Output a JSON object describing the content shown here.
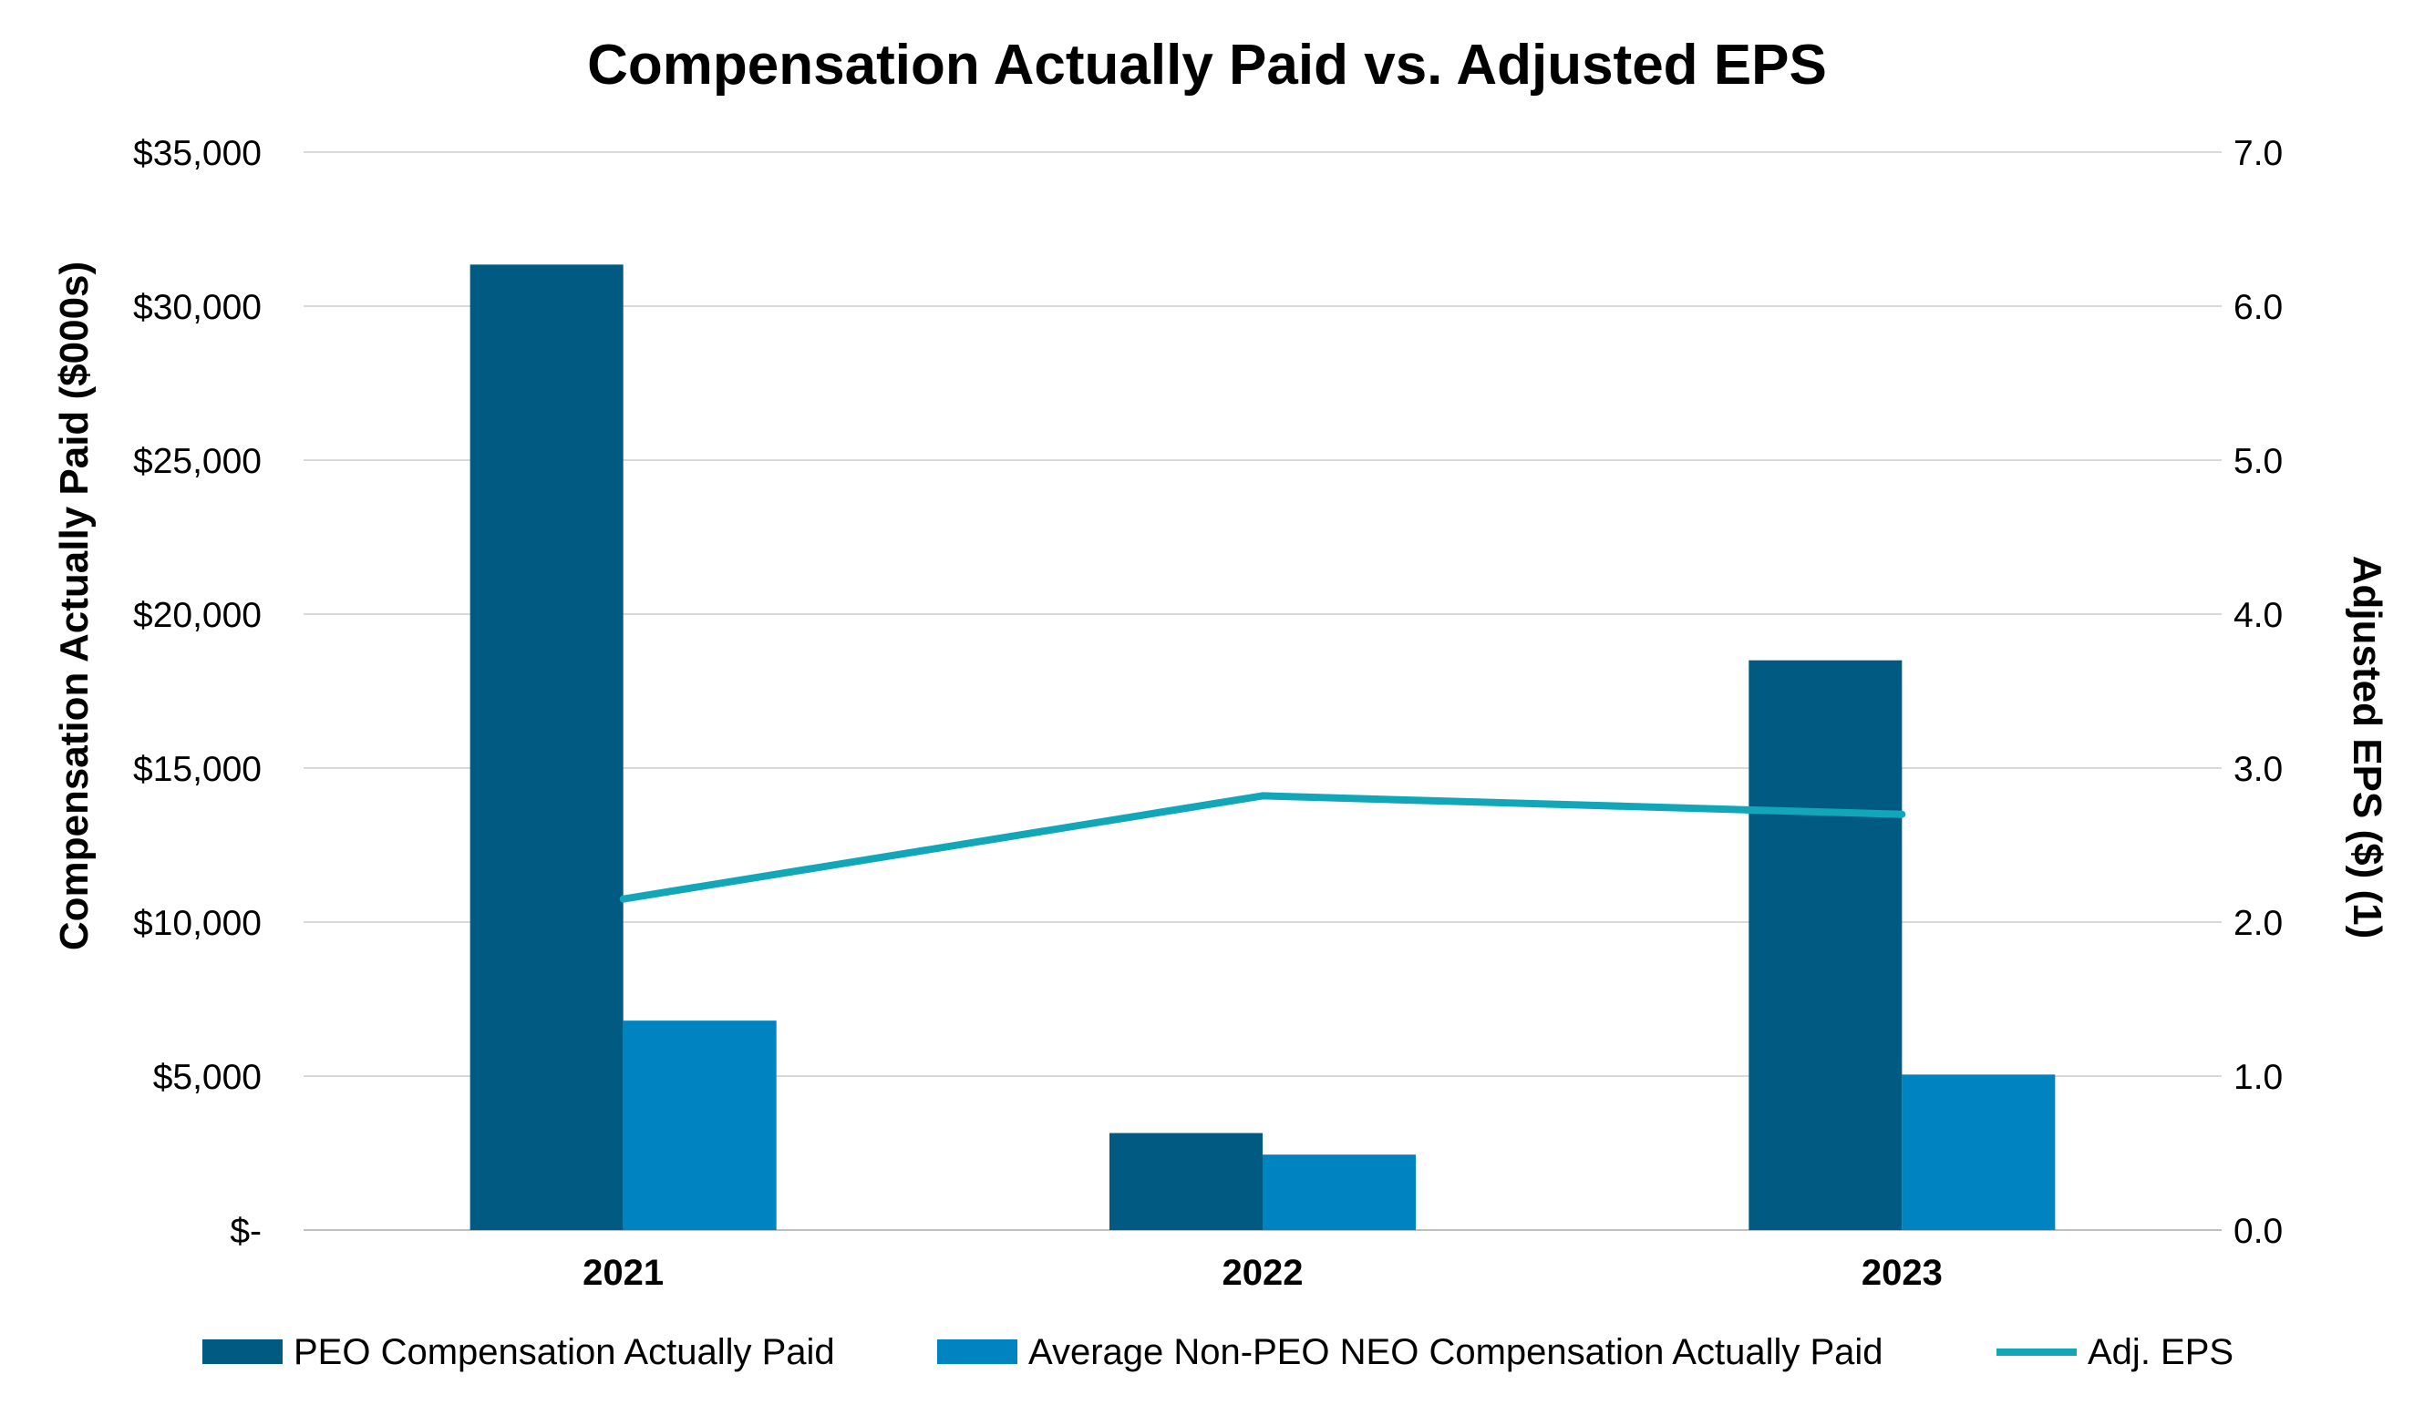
{
  "chart_data": {
    "type": "bar",
    "title": "Compensation Actually Paid vs. Adjusted EPS",
    "categories": [
      "2021",
      "2022",
      "2023"
    ],
    "ylabel": "Compensation Actually Paid ($000s)",
    "y2label": "Adjusted EPS ($) (1)",
    "ylim": [
      0,
      35000
    ],
    "y2lim": [
      0,
      7
    ],
    "yticks": [
      {
        "value": 35000,
        "label": "$35,000"
      },
      {
        "value": 30000,
        "label": "$30,000"
      },
      {
        "value": 25000,
        "label": "$25,000"
      },
      {
        "value": 20000,
        "label": "$20,000"
      },
      {
        "value": 15000,
        "label": "$15,000"
      },
      {
        "value": 10000,
        "label": "$10,000"
      },
      {
        "value": 5000,
        "label": "$5,000"
      },
      {
        "value": 0,
        "label": "$-"
      }
    ],
    "y2ticks": [
      {
        "value": 7,
        "label": "7.0"
      },
      {
        "value": 6,
        "label": "6.0"
      },
      {
        "value": 5,
        "label": "5.0"
      },
      {
        "value": 4,
        "label": "4.0"
      },
      {
        "value": 3,
        "label": "3.0"
      },
      {
        "value": 2,
        "label": "2.0"
      },
      {
        "value": 1,
        "label": "1.0"
      },
      {
        "value": 0,
        "label": "0.0"
      }
    ],
    "grid": true,
    "legend_position": "bottom",
    "series": [
      {
        "name": "PEO Compensation Actually Paid",
        "type": "bar",
        "axis": "left",
        "color": "#005A82",
        "values": [
          31350,
          3150,
          18500
        ]
      },
      {
        "name": "Average Non-PEO NEO Compensation Actually Paid",
        "type": "bar",
        "axis": "left",
        "color": "#0083C1",
        "values": [
          6800,
          2450,
          5050
        ]
      },
      {
        "name": "Adj. EPS",
        "type": "line",
        "axis": "right",
        "color": "#12A7B8",
        "values": [
          2.15,
          2.82,
          2.7
        ]
      }
    ]
  }
}
